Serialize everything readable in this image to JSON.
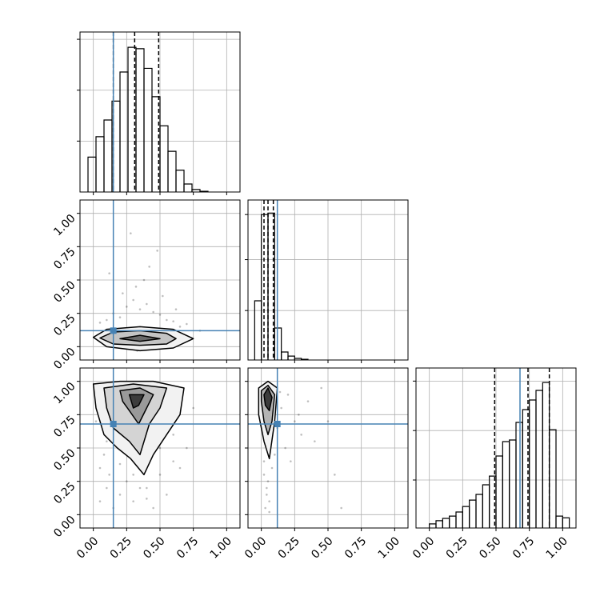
{
  "chart_data": {
    "type": "corner",
    "xlim": [
      -0.1,
      1.1
    ],
    "ticks": [
      {
        "value": 0,
        "label": "0.00"
      },
      {
        "value": 0.25,
        "label": "0.25"
      },
      {
        "value": 0.5,
        "label": "0.50"
      },
      {
        "value": 0.75,
        "label": "0.75"
      },
      {
        "value": 1,
        "label": "1.00"
      }
    ],
    "grid": true,
    "truths": [
      0.15,
      0.12,
      0.68
    ],
    "truth_color": "#4682b4",
    "parameters": [
      {
        "bins": [
          -0.04,
          0.02,
          0.08,
          0.14,
          0.2,
          0.26,
          0.32,
          0.38,
          0.44,
          0.5,
          0.56,
          0.62,
          0.68,
          0.74,
          0.8,
          0.86
        ],
        "counts": [
          24,
          38,
          49.5,
          62.5,
          82.5,
          99.5,
          98.5,
          85,
          65.5,
          45.5,
          28,
          15,
          5.5,
          1.7,
          0.5
        ],
        "ylim": [
          0,
          110
        ],
        "yticks": [
          35,
          70,
          105
        ],
        "quantiles": [
          0.15,
          0.31,
          0.49
        ]
      },
      {
        "bins": [
          -0.05,
          0,
          0.05,
          0.1,
          0.15,
          0.2,
          0.25,
          0.3,
          0.35
        ],
        "counts": [
          40.7,
          100,
          101,
          22,
          5.5,
          2.7,
          1.1,
          0.5
        ],
        "ylim": [
          0,
          110
        ],
        "yticks": [
          34,
          69,
          100
        ],
        "quantiles": [
          0.02,
          0.05,
          0.09
        ]
      },
      {
        "bins": [
          0,
          0.05,
          0.1,
          0.15,
          0.2,
          0.25,
          0.3,
          0.35,
          0.4,
          0.45,
          0.5,
          0.55,
          0.6,
          0.65,
          0.7,
          0.75,
          0.8,
          0.85,
          0.9,
          0.95,
          1,
          1.05
        ],
        "counts": [
          2.8,
          5,
          6.6,
          8.2,
          11,
          14.8,
          19.2,
          23.1,
          29.7,
          35.7,
          49.5,
          59.4,
          60.5,
          72.6,
          81.4,
          88,
          94.6,
          100,
          67.6,
          8.2,
          7
        ],
        "ylim": [
          0,
          110
        ],
        "yticks": [
          33,
          67,
          101
        ],
        "quantiles": [
          0.49,
          0.74,
          0.9
        ]
      }
    ],
    "pairs": [
      {
        "x_param": 0,
        "y_param": 1,
        "points": {
          "x": [
            0.05,
            0.1,
            0.15,
            0.2,
            0.25,
            0.3,
            0.35,
            0.4,
            0.45,
            0.5,
            0.55,
            0.6,
            0.65,
            0.7,
            0.8,
            0.12,
            0.22,
            0.32,
            0.42,
            0.52,
            0.62,
            0.28,
            0.38,
            0.48,
            0.33
          ],
          "y": [
            0.18,
            0.2,
            0.25,
            0.22,
            0.3,
            0.35,
            0.28,
            0.32,
            0.26,
            0.24,
            0.2,
            0.19,
            0.15,
            0.17,
            0.12,
            0.55,
            0.4,
            0.45,
            0.6,
            0.38,
            0.28,
            0.85,
            0.5,
            0.72,
            -0.03
          ]
        },
        "contours": [
          {
            "color": "#f2f2f2",
            "x": [
              0.0,
              0.1,
              0.35,
              0.6,
              0.75,
              0.6,
              0.35,
              0.1
            ],
            "y": [
              0.07,
              0.13,
              0.15,
              0.13,
              0.06,
              -0.01,
              -0.03,
              0.0
            ]
          },
          {
            "color": "#c4c4c4",
            "x": [
              0.05,
              0.15,
              0.35,
              0.55,
              0.62,
              0.55,
              0.35,
              0.15
            ],
            "y": [
              0.065,
              0.11,
              0.12,
              0.1,
              0.06,
              0.02,
              0.01,
              0.02
            ]
          },
          {
            "color": "#6a6a6a",
            "x": [
              0.2,
              0.35,
              0.5,
              0.35
            ],
            "y": [
              0.06,
              0.085,
              0.06,
              0.04
            ]
          }
        ]
      },
      {
        "x_param": 0,
        "y_param": 2,
        "points": {
          "x": [
            0.05,
            0.1,
            0.12,
            0.2,
            0.08,
            0.3,
            0.4,
            0.5,
            0.6,
            0.7,
            0.75,
            0.55,
            0.45,
            0.35,
            0.25,
            0.15,
            0.1,
            0.05,
            0.2,
            0.3,
            0.5,
            0.65,
            0.02,
            0.4,
            0.6
          ],
          "y": [
            0.1,
            0.2,
            0.3,
            0.15,
            0.45,
            0.1,
            0.2,
            0.3,
            0.4,
            0.5,
            0.8,
            0.15,
            0.05,
            0.2,
            0.25,
            0.05,
            0.55,
            0.35,
            0.38,
            0.3,
            0.5,
            0.35,
            0.7,
            0.12,
            0.6
          ]
        },
        "contours": [
          {
            "color": "#f2f2f2",
            "x": [
              0.0,
              0.2,
              0.45,
              0.68,
              0.65,
              0.55,
              0.45,
              0.38,
              0.28,
              0.18,
              0.08,
              0.02
            ],
            "y": [
              0.98,
              1.0,
              1.0,
              0.95,
              0.75,
              0.6,
              0.45,
              0.3,
              0.42,
              0.5,
              0.6,
              0.8
            ]
          },
          {
            "color": "#d4d4d4",
            "x": [
              0.08,
              0.3,
              0.55,
              0.5,
              0.42,
              0.35,
              0.27,
              0.15,
              0.1
            ],
            "y": [
              0.95,
              0.98,
              0.95,
              0.8,
              0.68,
              0.45,
              0.55,
              0.65,
              0.8
            ]
          },
          {
            "color": "#9a9a9a",
            "x": [
              0.2,
              0.35,
              0.45,
              0.4,
              0.34,
              0.27,
              0.22
            ],
            "y": [
              0.93,
              0.95,
              0.9,
              0.8,
              0.68,
              0.78,
              0.85
            ]
          },
          {
            "color": "#3c3c3c",
            "x": [
              0.27,
              0.38,
              0.34,
              0.3
            ],
            "y": [
              0.9,
              0.9,
              0.82,
              0.8
            ]
          }
        ]
      },
      {
        "x_param": 1,
        "y_param": 2,
        "points": {
          "x": [
            0.02,
            0.04,
            0.06,
            0.03,
            0.05,
            0.15,
            0.2,
            0.25,
            0.3,
            0.35,
            0.45,
            0.55,
            0.6,
            0.18,
            0.22,
            0.12,
            0.08,
            0.04,
            0.28,
            0.4,
            0.02,
            0.06,
            0.1,
            0.14,
            0.5
          ],
          "y": [
            0.3,
            0.2,
            0.1,
            0.05,
            0.25,
            0.8,
            0.9,
            0.7,
            0.6,
            0.85,
            0.95,
            0.3,
            0.05,
            0.5,
            0.4,
            0.65,
            0.35,
            0.15,
            0.75,
            0.55,
            0.4,
            0.02,
            0.45,
            0.92,
            0.7
          ]
        },
        "contours": [
          {
            "color": "#f2f2f2",
            "x": [
              -0.02,
              0.05,
              0.12,
              0.1,
              0.06,
              0.02,
              -0.02
            ],
            "y": [
              0.95,
              1.0,
              0.95,
              0.7,
              0.42,
              0.55,
              0.75
            ]
          },
          {
            "color": "#b4b4b4",
            "x": [
              0.0,
              0.05,
              0.1,
              0.08,
              0.05,
              0.02,
              0.0
            ],
            "y": [
              0.93,
              0.97,
              0.9,
              0.7,
              0.6,
              0.7,
              0.85
            ]
          },
          {
            "color": "#3c3c3c",
            "x": [
              0.02,
              0.05,
              0.08,
              0.06,
              0.03
            ],
            "y": [
              0.9,
              0.95,
              0.88,
              0.78,
              0.82
            ]
          }
        ]
      }
    ]
  }
}
